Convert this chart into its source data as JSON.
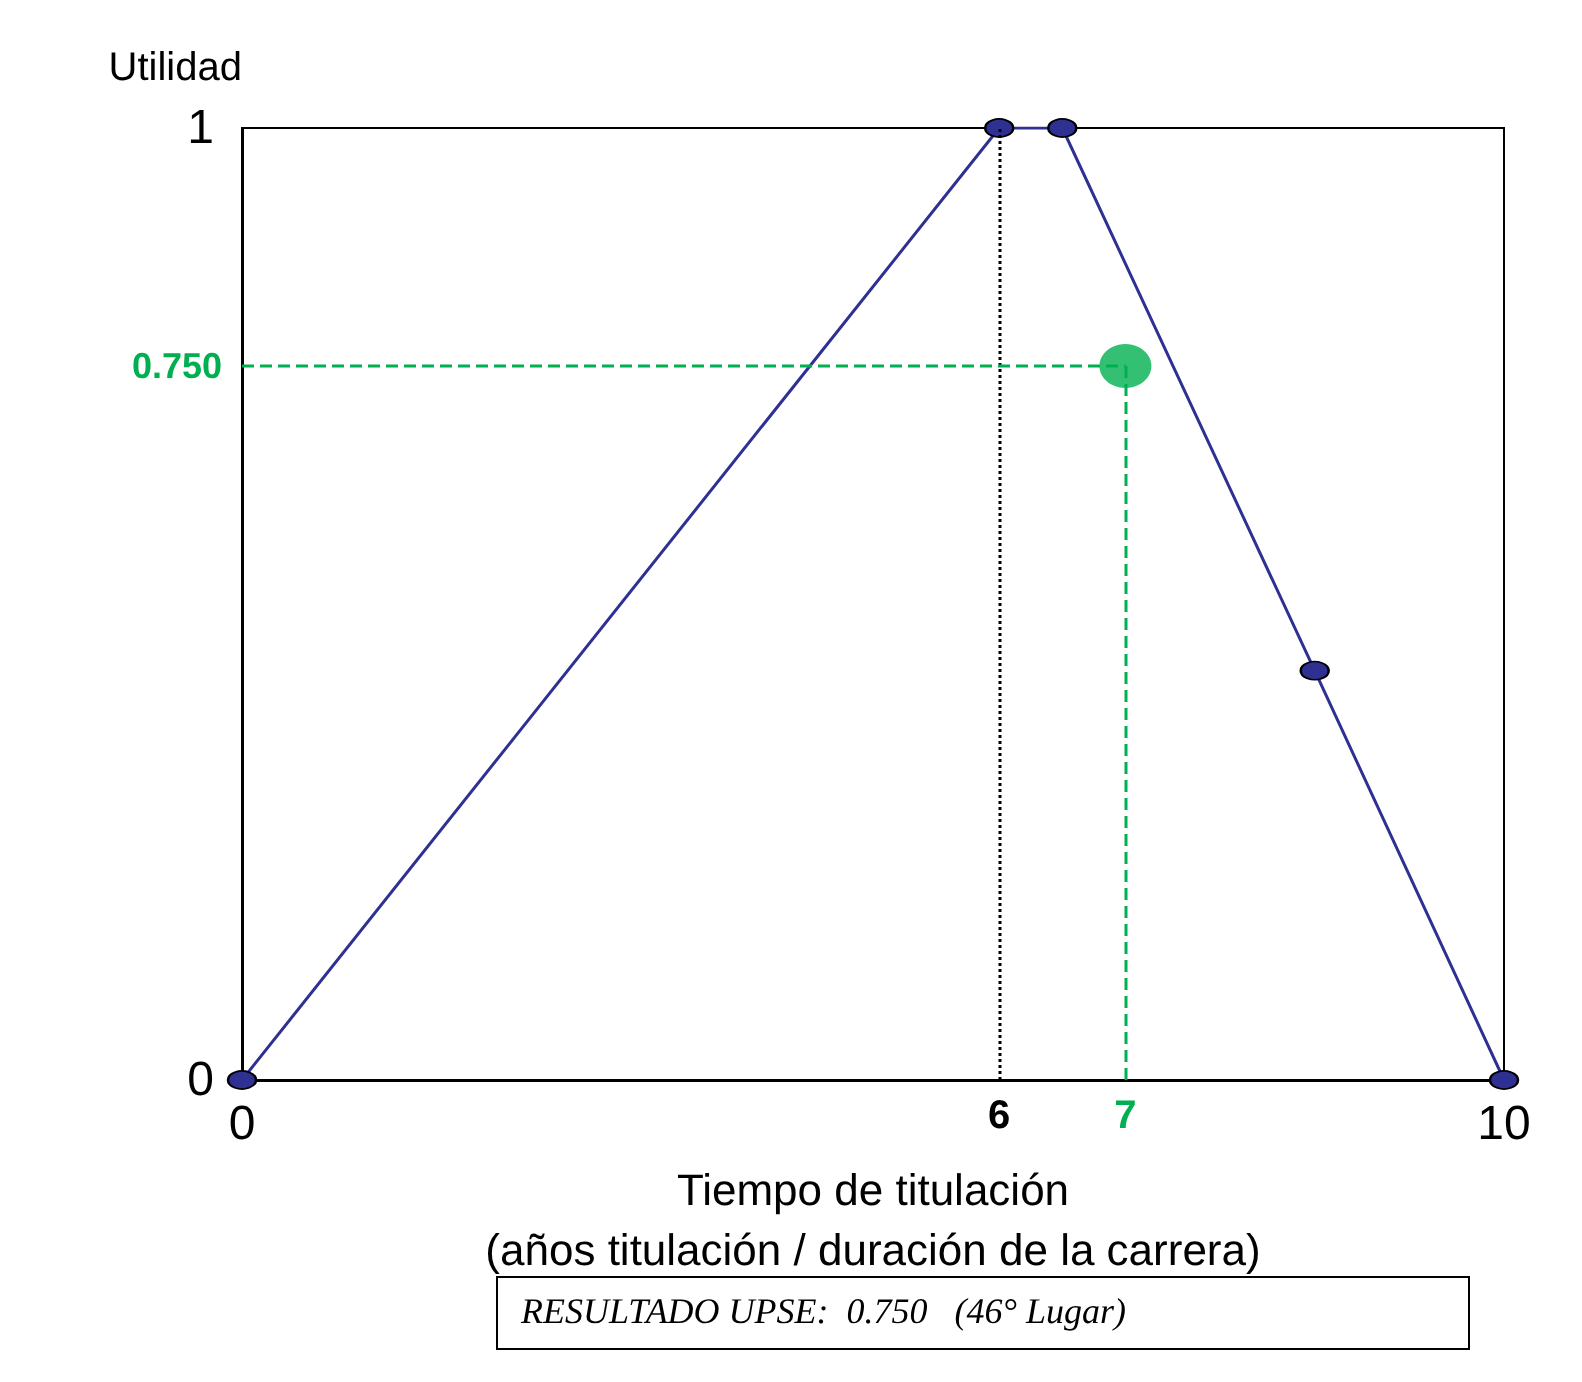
{
  "chart_data": {
    "type": "line",
    "ylabel": "Utilidad",
    "xlabel": "Tiempo de titulación\n(años titulación / duración de la carrera)",
    "xlim": [
      0,
      10
    ],
    "ylim": [
      0,
      1
    ],
    "xticks": [
      0,
      10
    ],
    "yticks": [
      0,
      1
    ],
    "grid": false,
    "marker": "circle",
    "line_style": "solid",
    "series": [
      {
        "color": "#2e3192",
        "x": [
          0,
          6,
          6.5,
          8.5,
          10
        ],
        "values": [
          0,
          1,
          1,
          0.43,
          0
        ]
      },
      {
        "type": "scatter",
        "color": "#00b050",
        "x": [
          7
        ],
        "values": [
          0.75
        ]
      }
    ],
    "ref_lines": [
      {
        "axis": "x",
        "value": 6,
        "label": "6",
        "color": "#000000",
        "line_style": "dotted"
      },
      {
        "axis": "x",
        "value": 7,
        "label": "7",
        "color": "#00b050",
        "line_style": "dashed"
      },
      {
        "axis": "y",
        "value": 0.75,
        "label": "0.750",
        "color": "#00b050",
        "line_style": "dashed"
      }
    ],
    "annotations": [
      "RESULTADO UPSE:  0.750   (46° Lugar)"
    ]
  }
}
